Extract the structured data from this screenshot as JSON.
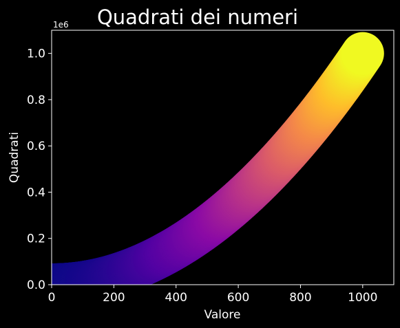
{
  "chart_data": {
    "type": "scatter",
    "title": "Quadrati dei numeri",
    "xlabel": "Valore",
    "ylabel": "Quadrati",
    "y_offset_label": "1e6",
    "xlim": [
      0,
      1100
    ],
    "ylim": [
      0,
      1100000
    ],
    "x_ticks": [
      0,
      200,
      400,
      600,
      800,
      1000
    ],
    "x_tick_labels": [
      "0",
      "200",
      "400",
      "600",
      "800",
      "1000"
    ],
    "y_ticks": [
      0,
      200000,
      400000,
      600000,
      800000,
      1000000
    ],
    "y_tick_labels": [
      "0.0",
      "0.2",
      "0.4",
      "0.6",
      "0.8",
      "1.0"
    ],
    "series": [
      {
        "x_start": 1,
        "x_end": 1000,
        "y_function": "x^2",
        "colormap": "plasma",
        "color_by": "y"
      }
    ],
    "grid": false,
    "background": "#000000",
    "foreground": "#ffffff",
    "colormap_stops": [
      "#0d0887",
      "#5302a3",
      "#8b0aa5",
      "#b83289",
      "#db5c68",
      "#f48849",
      "#febd2a",
      "#f0f921"
    ]
  }
}
